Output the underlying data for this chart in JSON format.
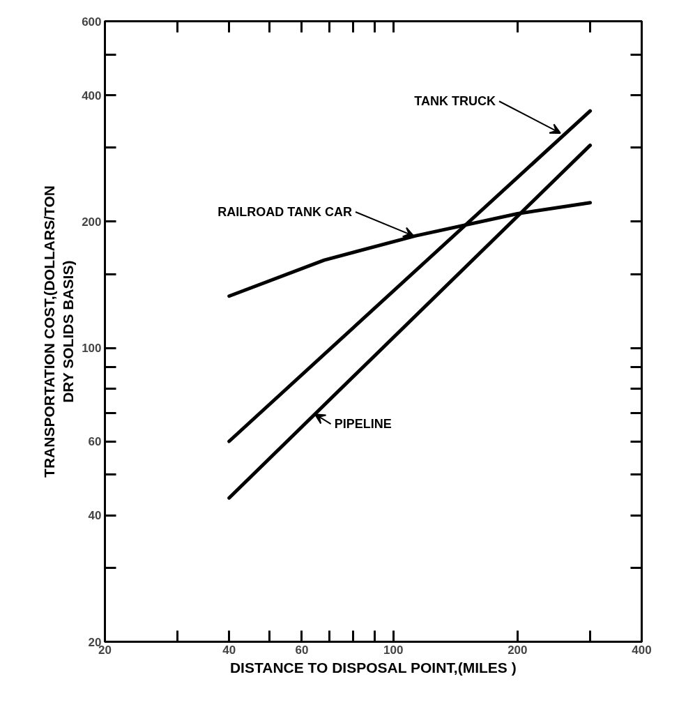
{
  "chart_data": {
    "type": "line",
    "xlabel": "DISTANCE TO DISPOSAL POINT,(MILES )",
    "ylabel": "TRANSPORTATION COST,(DOLLARS/TON\nDRY SOLIDS BASIS)",
    "log": "xy",
    "xlim": [
      20,
      400
    ],
    "xticks": [
      20,
      {
        "value": 30,
        "label": null
      },
      40,
      {
        "value": 50,
        "label": null
      },
      60,
      {
        "value": 70,
        "label": null
      },
      {
        "value": 80,
        "label": null
      },
      {
        "value": 90,
        "label": null
      },
      100,
      200,
      {
        "value": 300,
        "label": null
      },
      400
    ],
    "ylim": [
      20,
      600
    ],
    "yticks": [
      20,
      {
        "value": 30,
        "label": null
      },
      40,
      {
        "value": 50,
        "label": null
      },
      60,
      {
        "value": 70,
        "label": null
      },
      {
        "value": 80,
        "label": null
      },
      {
        "value": 90,
        "label": null
      },
      100,
      {
        "value": 150,
        "label": null
      },
      200,
      {
        "value": 300,
        "label": null
      },
      400,
      {
        "value": 500,
        "label": null
      },
      600
    ],
    "grid": false,
    "marker": "none",
    "line_style": "solid",
    "series": [
      {
        "name": "TANK TRUCK",
        "color": "#000000",
        "x": [
          40,
          300
        ],
        "values": [
          60,
          367
        ]
      },
      {
        "name": "RAILROAD TANK CAR",
        "color": "#000000",
        "x": [
          40,
          68,
          113,
          200,
          300
        ],
        "values": [
          133,
          162,
          185,
          209,
          222
        ]
      },
      {
        "name": "PIPELINE",
        "color": "#000000",
        "x": [
          40,
          300
        ],
        "values": [
          44,
          304
        ]
      }
    ]
  }
}
